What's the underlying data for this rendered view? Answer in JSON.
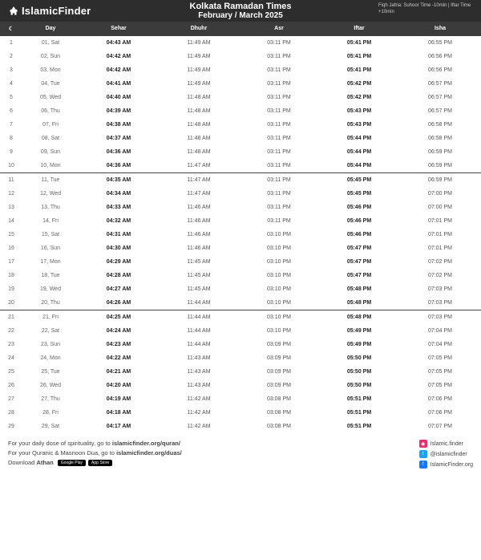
{
  "header": {
    "logo_text": "IslamicFinder",
    "title_line1": "Kolkata  Ramadan Times",
    "title_line2": "February / March 2025",
    "note": "Fiqh Jafria: Suhoor Time -10min | Iftar Time +10min"
  },
  "columns": {
    "moon": "☾",
    "day": "Day",
    "sehar": "Sehar",
    "dhuhr": "Dhuhr",
    "asr": "Asr",
    "iftar": "Iftar",
    "isha": "Isha"
  },
  "groups": [
    {
      "rows": [
        {
          "i": "1",
          "day": "01, Sat",
          "sehar": "04:43 AM",
          "dhuhr": "11:49 AM",
          "asr": "03:11 PM",
          "iftar": "05:41 PM",
          "isha": "06:55 PM"
        },
        {
          "i": "2",
          "day": "02, Sun",
          "sehar": "04:42 AM",
          "dhuhr": "11:49 AM",
          "asr": "03:11 PM",
          "iftar": "05:41 PM",
          "isha": "06:56 PM"
        },
        {
          "i": "3",
          "day": "03, Mon",
          "sehar": "04:42 AM",
          "dhuhr": "11:49 AM",
          "asr": "03:11 PM",
          "iftar": "05:41 PM",
          "isha": "06:56 PM"
        },
        {
          "i": "4",
          "day": "04, Tue",
          "sehar": "04:41 AM",
          "dhuhr": "11:49 AM",
          "asr": "03:11 PM",
          "iftar": "05:42 PM",
          "isha": "06:57 PM"
        },
        {
          "i": "5",
          "day": "05, Wed",
          "sehar": "04:40 AM",
          "dhuhr": "11:48 AM",
          "asr": "03:11 PM",
          "iftar": "05:42 PM",
          "isha": "06:57 PM"
        },
        {
          "i": "6",
          "day": "06, Thu",
          "sehar": "04:39 AM",
          "dhuhr": "11:48 AM",
          "asr": "03:11 PM",
          "iftar": "05:43 PM",
          "isha": "06:57 PM"
        },
        {
          "i": "7",
          "day": "07, Fri",
          "sehar": "04:38 AM",
          "dhuhr": "11:48 AM",
          "asr": "03:11 PM",
          "iftar": "05:43 PM",
          "isha": "06:58 PM"
        },
        {
          "i": "8",
          "day": "08, Sat",
          "sehar": "04:37 AM",
          "dhuhr": "11:48 AM",
          "asr": "03:11 PM",
          "iftar": "05:44 PM",
          "isha": "06:58 PM"
        },
        {
          "i": "9",
          "day": "09, Sun",
          "sehar": "04:36 AM",
          "dhuhr": "11:48 AM",
          "asr": "03:11 PM",
          "iftar": "05:44 PM",
          "isha": "06:59 PM"
        },
        {
          "i": "10",
          "day": "10, Mon",
          "sehar": "04:36 AM",
          "dhuhr": "11:47 AM",
          "asr": "03:11 PM",
          "iftar": "05:44 PM",
          "isha": "06:59 PM"
        }
      ]
    },
    {
      "rows": [
        {
          "i": "11",
          "day": "11, Tue",
          "sehar": "04:35 AM",
          "dhuhr": "11:47 AM",
          "asr": "03:11 PM",
          "iftar": "05:45 PM",
          "isha": "06:59 PM"
        },
        {
          "i": "12",
          "day": "12, Wed",
          "sehar": "04:34 AM",
          "dhuhr": "11:47 AM",
          "asr": "03:11 PM",
          "iftar": "05:45 PM",
          "isha": "07:00 PM"
        },
        {
          "i": "13",
          "day": "13, Thu",
          "sehar": "04:33 AM",
          "dhuhr": "11:46 AM",
          "asr": "03:11 PM",
          "iftar": "05:46 PM",
          "isha": "07:00 PM"
        },
        {
          "i": "14",
          "day": "14, Fri",
          "sehar": "04:32 AM",
          "dhuhr": "11:46 AM",
          "asr": "03:11 PM",
          "iftar": "05:46 PM",
          "isha": "07:01 PM"
        },
        {
          "i": "15",
          "day": "15, Sat",
          "sehar": "04:31 AM",
          "dhuhr": "11:46 AM",
          "asr": "03:10 PM",
          "iftar": "05:46 PM",
          "isha": "07:01 PM"
        },
        {
          "i": "16",
          "day": "16, Sun",
          "sehar": "04:30 AM",
          "dhuhr": "11:46 AM",
          "asr": "03:10 PM",
          "iftar": "05:47 PM",
          "isha": "07:01 PM"
        },
        {
          "i": "17",
          "day": "17, Mon",
          "sehar": "04:29 AM",
          "dhuhr": "11:45 AM",
          "asr": "03:10 PM",
          "iftar": "05:47 PM",
          "isha": "07:02 PM"
        },
        {
          "i": "18",
          "day": "18, Tue",
          "sehar": "04:28 AM",
          "dhuhr": "11:45 AM",
          "asr": "03:10 PM",
          "iftar": "05:47 PM",
          "isha": "07:02 PM"
        },
        {
          "i": "19",
          "day": "19, Wed",
          "sehar": "04:27 AM",
          "dhuhr": "11:45 AM",
          "asr": "03:10 PM",
          "iftar": "05:48 PM",
          "isha": "07:03 PM"
        },
        {
          "i": "20",
          "day": "20, Thu",
          "sehar": "04:26 AM",
          "dhuhr": "11:44 AM",
          "asr": "03:10 PM",
          "iftar": "05:48 PM",
          "isha": "07:03 PM"
        }
      ]
    },
    {
      "rows": [
        {
          "i": "21",
          "day": "21, Fri",
          "sehar": "04:25 AM",
          "dhuhr": "11:44 AM",
          "asr": "03:10 PM",
          "iftar": "05:48 PM",
          "isha": "07:03 PM"
        },
        {
          "i": "22",
          "day": "22, Sat",
          "sehar": "04:24 AM",
          "dhuhr": "11:44 AM",
          "asr": "03:10 PM",
          "iftar": "05:49 PM",
          "isha": "07:04 PM"
        },
        {
          "i": "23",
          "day": "23, Sun",
          "sehar": "04:23 AM",
          "dhuhr": "11:44 AM",
          "asr": "03:09 PM",
          "iftar": "05:49 PM",
          "isha": "07:04 PM"
        },
        {
          "i": "24",
          "day": "24, Mon",
          "sehar": "04:22 AM",
          "dhuhr": "11:43 AM",
          "asr": "03:09 PM",
          "iftar": "05:50 PM",
          "isha": "07:05 PM"
        },
        {
          "i": "25",
          "day": "25, Tue",
          "sehar": "04:21 AM",
          "dhuhr": "11:43 AM",
          "asr": "03:09 PM",
          "iftar": "05:50 PM",
          "isha": "07:05 PM"
        },
        {
          "i": "26",
          "day": "26, Wed",
          "sehar": "04:20 AM",
          "dhuhr": "11:43 AM",
          "asr": "03:09 PM",
          "iftar": "05:50 PM",
          "isha": "07:05 PM"
        },
        {
          "i": "27",
          "day": "27, Thu",
          "sehar": "04:19 AM",
          "dhuhr": "11:42 AM",
          "asr": "03:08 PM",
          "iftar": "05:51 PM",
          "isha": "07:06 PM"
        },
        {
          "i": "28",
          "day": "28, Fri",
          "sehar": "04:18 AM",
          "dhuhr": "11:42 AM",
          "asr": "03:08 PM",
          "iftar": "05:51 PM",
          "isha": "07:06 PM"
        },
        {
          "i": "29",
          "day": "29, Sat",
          "sehar": "04:17 AM",
          "dhuhr": "11:42 AM",
          "asr": "03:08 PM",
          "iftar": "05:51 PM",
          "isha": "07:07 PM"
        }
      ]
    }
  ],
  "footer": {
    "line1_pre": "For your daily dose of spirituality, go to ",
    "line1_bold": "islamicfinder.org/quran/",
    "line2_pre": "For your Quranic & Masnoon Dua, go to ",
    "line2_bold": "islamicfinder.org/duas/",
    "line3_pre": "Download ",
    "line3_bold": "Athan",
    "badge1": "Google Play",
    "badge2": "App Store",
    "social": {
      "ig": "Islamic.finder",
      "tw": "@islamicfinder",
      "fb": "IslamicFinder.org"
    }
  }
}
